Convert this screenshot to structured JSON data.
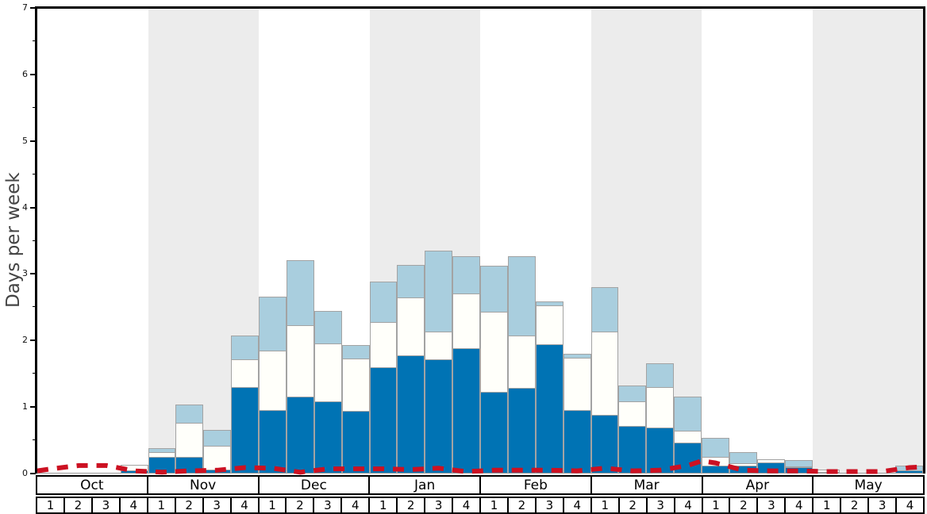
{
  "y_axis": {
    "label": "Days per week",
    "min": 0,
    "max": 7,
    "tick_labels": [
      "0",
      "1",
      "2",
      "3",
      "4",
      "5",
      "6",
      "7"
    ]
  },
  "x_axis": {
    "months": [
      "Oct",
      "Nov",
      "Dec",
      "Jan",
      "Feb",
      "Mar",
      "Apr",
      "May"
    ],
    "week_labels": [
      "1",
      "2",
      "3",
      "4"
    ]
  },
  "colors": {
    "dark_blue_bar": "#0073b4",
    "white_bar": "#fffffa",
    "light_blue_bar": "#a9cede",
    "red_line": "#cc1122",
    "shaded_band": "#ececec",
    "bar_border": "#a3a3a3",
    "axis": "#000000",
    "y_title_text": "#444444"
  },
  "chart_data": {
    "type": "bar",
    "stacked": true,
    "title": "",
    "xlabel": "",
    "ylabel": "Days per week",
    "ylim": [
      0,
      7
    ],
    "grid": false,
    "legend_position": "none",
    "categories": [
      "Oct W1",
      "Oct W2",
      "Oct W3",
      "Oct W4",
      "Nov W1",
      "Nov W2",
      "Nov W3",
      "Nov W4",
      "Dec W1",
      "Dec W2",
      "Dec W3",
      "Dec W4",
      "Jan W1",
      "Jan W2",
      "Jan W3",
      "Jan W4",
      "Feb W1",
      "Feb W2",
      "Feb W3",
      "Feb W4",
      "Mar W1",
      "Mar W2",
      "Mar W3",
      "Mar W4",
      "Apr W1",
      "Apr W2",
      "Apr W3",
      "Apr W4",
      "May W1",
      "May W2",
      "May W3",
      "May W4"
    ],
    "series": [
      {
        "name": "dark-blue-bottom-segment",
        "color_key": "dark_blue_bar",
        "values_are": "cumulative stack top in days per week",
        "cumulative_tops": [
          0,
          0,
          0,
          0.05,
          0.25,
          0.25,
          0.06,
          1.3,
          0.95,
          1.16,
          1.09,
          0.94,
          1.6,
          1.78,
          1.72,
          1.88,
          1.23,
          1.29,
          1.94,
          0.95,
          0.88,
          0.72,
          0.69,
          0.46,
          0.12,
          0.12,
          0.17,
          0.1,
          0.02,
          0,
          0,
          0.05
        ]
      },
      {
        "name": "white-middle-segment",
        "color_key": "white_bar",
        "values_are": "cumulative stack top in days per week",
        "cumulative_tops": [
          0,
          0,
          0,
          0.13,
          0.32,
          0.76,
          0.42,
          1.72,
          1.85,
          2.23,
          1.95,
          1.73,
          2.28,
          2.65,
          2.14,
          2.71,
          2.43,
          2.08,
          2.53,
          1.74,
          2.14,
          1.09,
          1.3,
          0.64,
          0.25,
          0.16,
          0.22,
          0.11,
          0.06,
          0,
          0,
          0.05
        ]
      },
      {
        "name": "light-blue-top-segment",
        "color_key": "light_blue_bar",
        "values_are": "cumulative stack top in days per week",
        "cumulative_tops": [
          0,
          0,
          0,
          0.13,
          0.38,
          1.04,
          0.66,
          2.08,
          2.66,
          3.21,
          2.44,
          1.93,
          2.88,
          3.14,
          3.35,
          3.27,
          3.13,
          3.27,
          2.59,
          1.8,
          2.8,
          1.32,
          1.66,
          1.16,
          0.54,
          0.32,
          0.22,
          0.2,
          0.06,
          0,
          0,
          0.12
        ]
      }
    ],
    "line_series": {
      "name": "red-dashed-line",
      "color_key": "red_line",
      "style": "dashed",
      "points_week_value": [
        [
          0,
          0.04
        ],
        [
          0.5,
          0.07
        ],
        [
          1.5,
          0.12
        ],
        [
          2.5,
          0.12
        ],
        [
          3.5,
          0.04
        ],
        [
          4.5,
          0.02
        ],
        [
          5.5,
          0.04
        ],
        [
          6.5,
          0.05
        ],
        [
          7.5,
          0.09
        ],
        [
          8.5,
          0.08
        ],
        [
          9.5,
          0.02
        ],
        [
          10.5,
          0.07
        ],
        [
          11.5,
          0.07
        ],
        [
          12.5,
          0.07
        ],
        [
          13.5,
          0.06
        ],
        [
          14.5,
          0.08
        ],
        [
          15.5,
          0.03
        ],
        [
          16.5,
          0.05
        ],
        [
          17.5,
          0.05
        ],
        [
          18.5,
          0.05
        ],
        [
          19.5,
          0.04
        ],
        [
          20.5,
          0.08
        ],
        [
          21.5,
          0.04
        ],
        [
          22.5,
          0.05
        ],
        [
          23.5,
          0.12
        ],
        [
          24,
          0.19
        ],
        [
          24.5,
          0.16
        ],
        [
          25.5,
          0.05
        ],
        [
          26.5,
          0.04
        ],
        [
          27.5,
          0.04
        ],
        [
          28.5,
          0.03
        ],
        [
          29.5,
          0.03
        ],
        [
          30.5,
          0.03
        ],
        [
          31.5,
          0.09
        ],
        [
          32,
          0.1
        ]
      ]
    },
    "background_bands": {
      "shaded_months": [
        "Nov",
        "Jan",
        "Mar",
        "May"
      ],
      "color_key": "shaded_band"
    }
  }
}
